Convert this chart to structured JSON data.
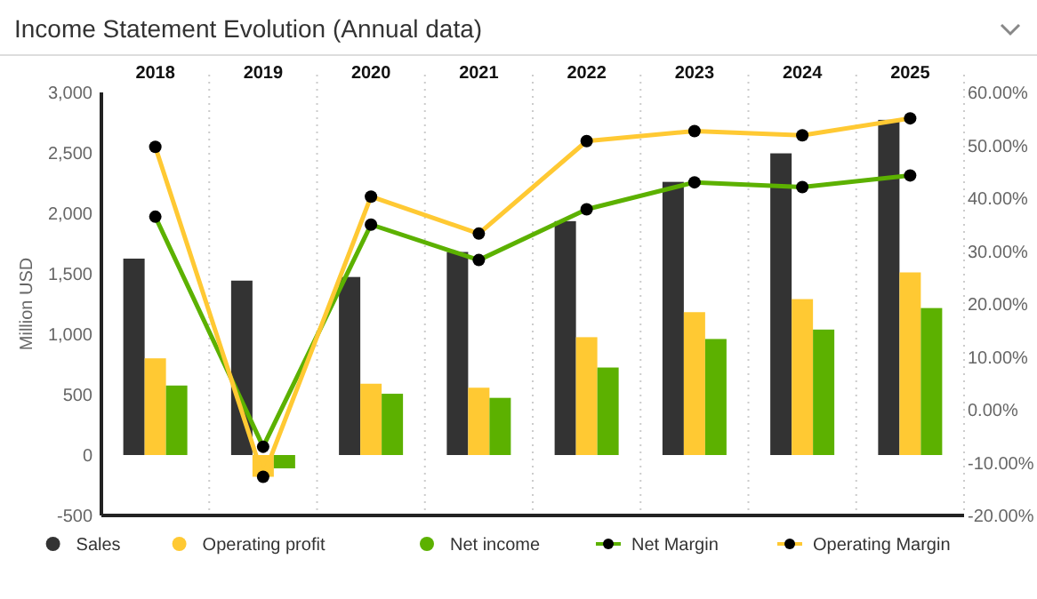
{
  "chart_data": {
    "type": "bar",
    "title": "Income Statement Evolution (Annual data)",
    "ylabel": "Million USD",
    "categories": [
      "2018",
      "2019",
      "2020",
      "2021",
      "2022",
      "2023",
      "2024",
      "2025"
    ],
    "series": [
      {
        "name": "Sales",
        "color": "#333333",
        "values": [
          1625,
          1443,
          1473,
          1680,
          1935,
          2260,
          2496,
          2773
        ]
      },
      {
        "name": "Operating profit",
        "color": "#ffc933",
        "values": [
          800,
          -180,
          590,
          557,
          975,
          1182,
          1290,
          1511
        ]
      },
      {
        "name": "Net income",
        "color": "#5cb100",
        "values": [
          575,
          -110,
          507,
          473,
          724,
          960,
          1038,
          1216
        ]
      },
      {
        "name": "Net Margin",
        "type": "line",
        "axis": "y2",
        "color": "#5cb100",
        "values": [
          36.5,
          -7.0,
          35.0,
          28.3,
          37.9,
          43.0,
          42.1,
          44.3
        ]
      },
      {
        "name": "Operating Margin",
        "type": "line",
        "axis": "y2",
        "color": "#ffc933",
        "values": [
          49.7,
          -12.7,
          40.3,
          33.3,
          50.8,
          52.7,
          51.9,
          55.1
        ]
      }
    ],
    "ylim": [
      -500,
      3000
    ],
    "yticks": [
      {
        "value": -500,
        "label": "-500"
      },
      {
        "value": 0,
        "label": "0"
      },
      {
        "value": 500,
        "label": "500"
      },
      {
        "value": 1000,
        "label": "1,000"
      },
      {
        "value": 1500,
        "label": "1,500"
      },
      {
        "value": 2000,
        "label": "2,000"
      },
      {
        "value": 2500,
        "label": "2,500"
      },
      {
        "value": 3000,
        "label": "3,000"
      }
    ],
    "y2lim": [
      -20,
      60
    ],
    "y2ticks": [
      {
        "value": -20,
        "label": "-20.00%"
      },
      {
        "value": -10,
        "label": "-10.00%"
      },
      {
        "value": 0,
        "label": "0.00%"
      },
      {
        "value": 10,
        "label": "10.00%"
      },
      {
        "value": 20,
        "label": "20.00%"
      },
      {
        "value": 30,
        "label": "30.00%"
      },
      {
        "value": 40,
        "label": "40.00%"
      },
      {
        "value": 50,
        "label": "50.00%"
      },
      {
        "value": 60,
        "label": "60.00%"
      }
    ],
    "grid": "x",
    "legend": "bottom",
    "marker": "circle",
    "line_style": "solid"
  }
}
